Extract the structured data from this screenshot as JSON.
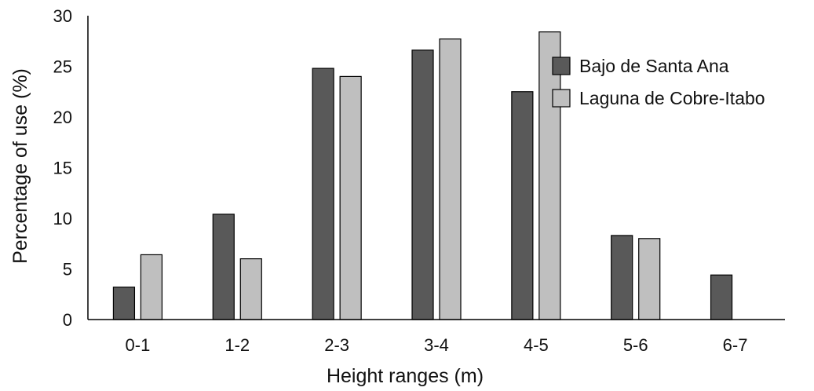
{
  "chart_data": {
    "type": "bar",
    "title": "",
    "xlabel": "Height ranges (m)",
    "ylabel": "Percentage of use  (%)",
    "ylim": [
      0,
      30
    ],
    "yticks": [
      0,
      5,
      10,
      15,
      20,
      25,
      30
    ],
    "grid": false,
    "legend": "top-right",
    "categories": [
      "0-1",
      "1-2",
      "2-3",
      "3-4",
      "4-5",
      "5-6",
      "6-7"
    ],
    "series": [
      {
        "name": "Bajo de Santa Ana",
        "color": "#595959",
        "values": [
          3.2,
          10.4,
          24.8,
          26.6,
          22.5,
          8.3,
          4.4
        ]
      },
      {
        "name": "Laguna de Cobre-Itabo",
        "color": "#bfbfbf",
        "values": [
          6.4,
          6.0,
          24.0,
          27.7,
          28.4,
          8.0,
          null
        ]
      }
    ]
  }
}
